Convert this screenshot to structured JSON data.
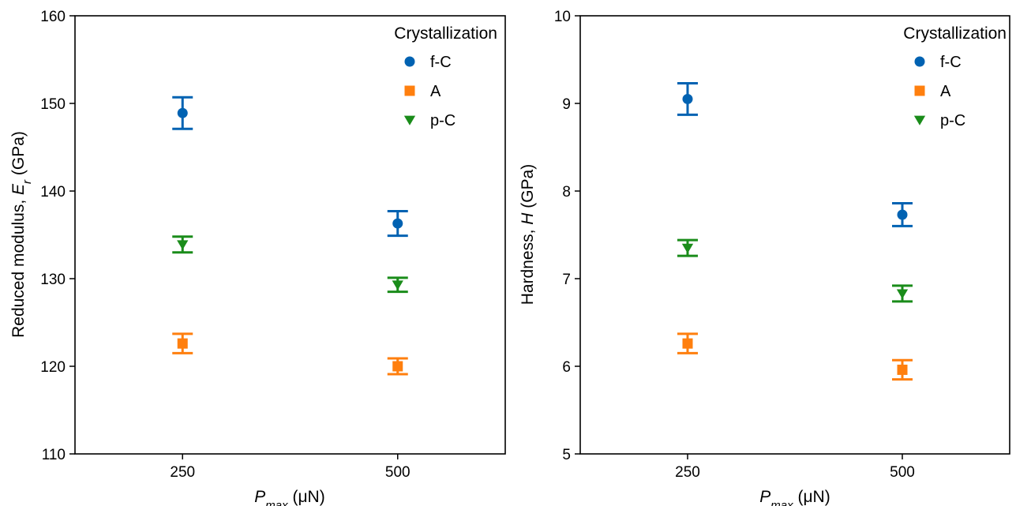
{
  "colors": {
    "f-C": "#0062B2",
    "A": "#FF7F0E",
    "p-C": "#1A8C1A",
    "axes": "#000000"
  },
  "chart_data": [
    {
      "type": "scatter",
      "title": "",
      "x_categories": [
        "250",
        "500"
      ],
      "xlabel": {
        "italic": "P",
        "sub": "max",
        "rest": " (μN)"
      },
      "ylabel": {
        "pre": "Reduced modulus, ",
        "italic": "E",
        "sub": "r",
        "rest": " (GPa)"
      },
      "ylim": [
        110,
        160
      ],
      "yticks": [
        "110",
        "120",
        "130",
        "140",
        "150",
        "160"
      ],
      "grid": false,
      "legend": {
        "title": "Crystallization",
        "placement": "top-right",
        "entries": [
          {
            "label": "f-C",
            "marker": "circle"
          },
          {
            "label": "A",
            "marker": "square"
          },
          {
            "label": "p-C",
            "marker": "triangle-down"
          }
        ]
      },
      "series": [
        {
          "name": "f-C",
          "marker": "circle",
          "values": [
            148.9,
            136.3
          ],
          "errors": [
            1.8,
            1.4
          ]
        },
        {
          "name": "A",
          "marker": "square",
          "values": [
            122.6,
            120.0
          ],
          "errors": [
            1.1,
            0.9
          ]
        },
        {
          "name": "p-C",
          "marker": "triangle-down",
          "values": [
            133.9,
            129.3
          ],
          "errors": [
            0.9,
            0.8
          ]
        }
      ]
    },
    {
      "type": "scatter",
      "title": "",
      "x_categories": [
        "250",
        "500"
      ],
      "xlabel": {
        "italic": "P",
        "sub": "max",
        "rest": " (μN)"
      },
      "ylabel": {
        "pre": "Hardness, ",
        "italic": "H",
        "rest": " (GPa)"
      },
      "ylim": [
        5,
        10
      ],
      "yticks": [
        "5",
        "6",
        "7",
        "8",
        "9",
        "10"
      ],
      "grid": false,
      "legend": {
        "title": "Crystallization",
        "placement": "top-right",
        "entries": [
          {
            "label": "f-C",
            "marker": "circle"
          },
          {
            "label": "A",
            "marker": "square"
          },
          {
            "label": "p-C",
            "marker": "triangle-down"
          }
        ]
      },
      "series": [
        {
          "name": "f-C",
          "marker": "circle",
          "values": [
            9.05,
            7.73
          ],
          "errors": [
            0.18,
            0.13
          ]
        },
        {
          "name": "A",
          "marker": "square",
          "values": [
            6.26,
            5.96
          ],
          "errors": [
            0.11,
            0.11
          ]
        },
        {
          "name": "p-C",
          "marker": "triangle-down",
          "values": [
            7.35,
            6.83
          ],
          "errors": [
            0.09,
            0.09
          ]
        }
      ]
    }
  ]
}
